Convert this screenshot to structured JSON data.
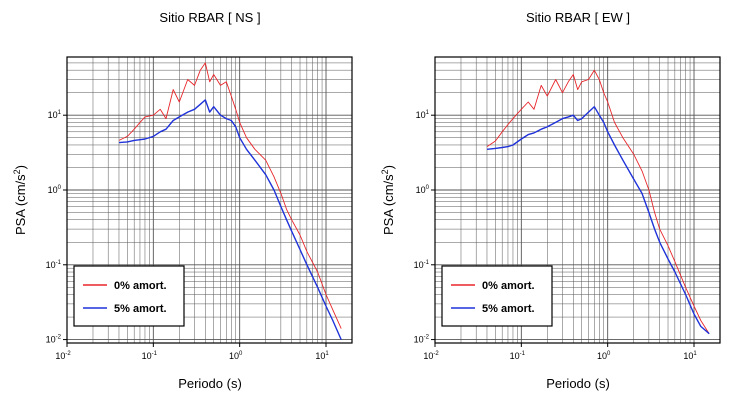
{
  "colors": {
    "undamped": "#e8262a",
    "damped": "#1f33d9",
    "grid": "#555555",
    "frame": "#000000"
  },
  "chart_data": [
    {
      "type": "line",
      "title": "Sitio RBAR [ NS ]",
      "xlabel": "Periodo (s)",
      "ylabel": "PSA (cm/s²)",
      "ylabel_parts": {
        "text": "PSA (cm/s",
        "sup": "2",
        "close": ")"
      },
      "xscale": "log",
      "yscale": "log",
      "xlim": [
        0.01,
        20
      ],
      "ylim": [
        0.009,
        60
      ],
      "xticks": [
        {
          "value": 0.01,
          "base": "10",
          "exp": "-2"
        },
        {
          "value": 0.1,
          "base": "10",
          "exp": "-1"
        },
        {
          "value": 1,
          "base": "10",
          "exp": "0"
        },
        {
          "value": 10,
          "base": "10",
          "exp": "1"
        }
      ],
      "yticks": [
        {
          "value": 0.01,
          "base": "10",
          "exp": "-2"
        },
        {
          "value": 0.1,
          "base": "10",
          "exp": "-1"
        },
        {
          "value": 1,
          "base": "10",
          "exp": "0"
        },
        {
          "value": 10,
          "base": "10",
          "exp": "1"
        }
      ],
      "grid": true,
      "legend_position": "bottom-left",
      "series": [
        {
          "name": "0% amort.",
          "color": "#e8262a",
          "x": [
            0.04,
            0.05,
            0.06,
            0.07,
            0.08,
            0.1,
            0.12,
            0.14,
            0.17,
            0.2,
            0.25,
            0.3,
            0.35,
            0.4,
            0.45,
            0.5,
            0.6,
            0.7,
            0.8,
            0.9,
            1.0,
            1.2,
            1.5,
            2.0,
            2.5,
            3.0,
            3.5,
            4.0,
            5.0,
            6.0,
            8.0,
            10.0,
            12.0,
            15.0
          ],
          "y": [
            4.6,
            5.2,
            6.5,
            8.0,
            9.5,
            10.0,
            12.0,
            9.0,
            22.0,
            15.0,
            30.0,
            25.0,
            40.0,
            50.0,
            28.0,
            35.0,
            25.0,
            28.0,
            18.0,
            12.0,
            8.0,
            5.0,
            3.5,
            2.5,
            1.5,
            0.9,
            0.55,
            0.4,
            0.25,
            0.15,
            0.08,
            0.04,
            0.025,
            0.014
          ]
        },
        {
          "name": "5% amort.",
          "color": "#1f33d9",
          "x": [
            0.04,
            0.05,
            0.06,
            0.07,
            0.08,
            0.1,
            0.12,
            0.14,
            0.17,
            0.2,
            0.25,
            0.3,
            0.35,
            0.4,
            0.45,
            0.5,
            0.6,
            0.7,
            0.8,
            0.9,
            1.0,
            1.2,
            1.5,
            2.0,
            2.5,
            3.0,
            3.5,
            4.0,
            5.0,
            6.0,
            8.0,
            10.0,
            12.0,
            15.0
          ],
          "y": [
            4.3,
            4.4,
            4.6,
            4.7,
            4.8,
            5.2,
            6.0,
            6.5,
            8.5,
            9.5,
            11.0,
            12.0,
            14.0,
            16.0,
            11.0,
            13.0,
            10.0,
            9.0,
            8.5,
            7.0,
            5.0,
            3.5,
            2.5,
            1.6,
            1.0,
            0.6,
            0.4,
            0.28,
            0.16,
            0.1,
            0.05,
            0.028,
            0.018,
            0.01
          ]
        }
      ]
    },
    {
      "type": "line",
      "title": "Sitio RBAR [ EW ]",
      "xlabel": "Periodo (s)",
      "ylabel": "PSA (cm/s²)",
      "ylabel_parts": {
        "text": "PSA (cm/s",
        "sup": "2",
        "close": ")"
      },
      "xscale": "log",
      "yscale": "log",
      "xlim": [
        0.01,
        20
      ],
      "ylim": [
        0.009,
        60
      ],
      "xticks": [
        {
          "value": 0.01,
          "base": "10",
          "exp": "-2"
        },
        {
          "value": 0.1,
          "base": "10",
          "exp": "-1"
        },
        {
          "value": 1,
          "base": "10",
          "exp": "0"
        },
        {
          "value": 10,
          "base": "10",
          "exp": "1"
        }
      ],
      "yticks": [
        {
          "value": 0.01,
          "base": "10",
          "exp": "-2"
        },
        {
          "value": 0.1,
          "base": "10",
          "exp": "-1"
        },
        {
          "value": 1,
          "base": "10",
          "exp": "0"
        },
        {
          "value": 10,
          "base": "10",
          "exp": "1"
        }
      ],
      "grid": true,
      "legend_position": "bottom-left",
      "series": [
        {
          "name": "0% amort.",
          "color": "#e8262a",
          "x": [
            0.04,
            0.05,
            0.06,
            0.07,
            0.08,
            0.1,
            0.12,
            0.14,
            0.17,
            0.2,
            0.25,
            0.3,
            0.35,
            0.4,
            0.45,
            0.5,
            0.6,
            0.7,
            0.8,
            0.9,
            1.0,
            1.2,
            1.5,
            2.0,
            2.5,
            3.0,
            3.5,
            4.0,
            5.0,
            6.0,
            8.0,
            10.0,
            12.0,
            15.0
          ],
          "y": [
            3.8,
            4.5,
            6.0,
            7.5,
            9.0,
            12.0,
            15.0,
            12.0,
            25.0,
            18.0,
            30.0,
            20.0,
            28.0,
            35.0,
            22.0,
            28.0,
            30.0,
            40.0,
            30.0,
            20.0,
            15.0,
            8.0,
            5.0,
            3.0,
            1.8,
            1.0,
            0.5,
            0.3,
            0.18,
            0.11,
            0.05,
            0.028,
            0.018,
            0.012
          ]
        },
        {
          "name": "5% amort.",
          "color": "#1f33d9",
          "x": [
            0.04,
            0.05,
            0.06,
            0.07,
            0.08,
            0.1,
            0.12,
            0.14,
            0.17,
            0.2,
            0.25,
            0.3,
            0.35,
            0.4,
            0.45,
            0.5,
            0.6,
            0.7,
            0.8,
            0.9,
            1.0,
            1.2,
            1.5,
            2.0,
            2.5,
            3.0,
            3.5,
            4.0,
            5.0,
            6.0,
            8.0,
            10.0,
            12.0,
            15.0
          ],
          "y": [
            3.5,
            3.6,
            3.7,
            3.8,
            4.0,
            4.8,
            5.5,
            5.8,
            6.5,
            7.0,
            8.0,
            9.0,
            9.5,
            10.0,
            8.5,
            9.0,
            11.0,
            13.0,
            10.0,
            8.0,
            6.0,
            4.0,
            2.5,
            1.4,
            0.9,
            0.5,
            0.3,
            0.2,
            0.12,
            0.08,
            0.04,
            0.022,
            0.015,
            0.012
          ]
        }
      ]
    }
  ]
}
